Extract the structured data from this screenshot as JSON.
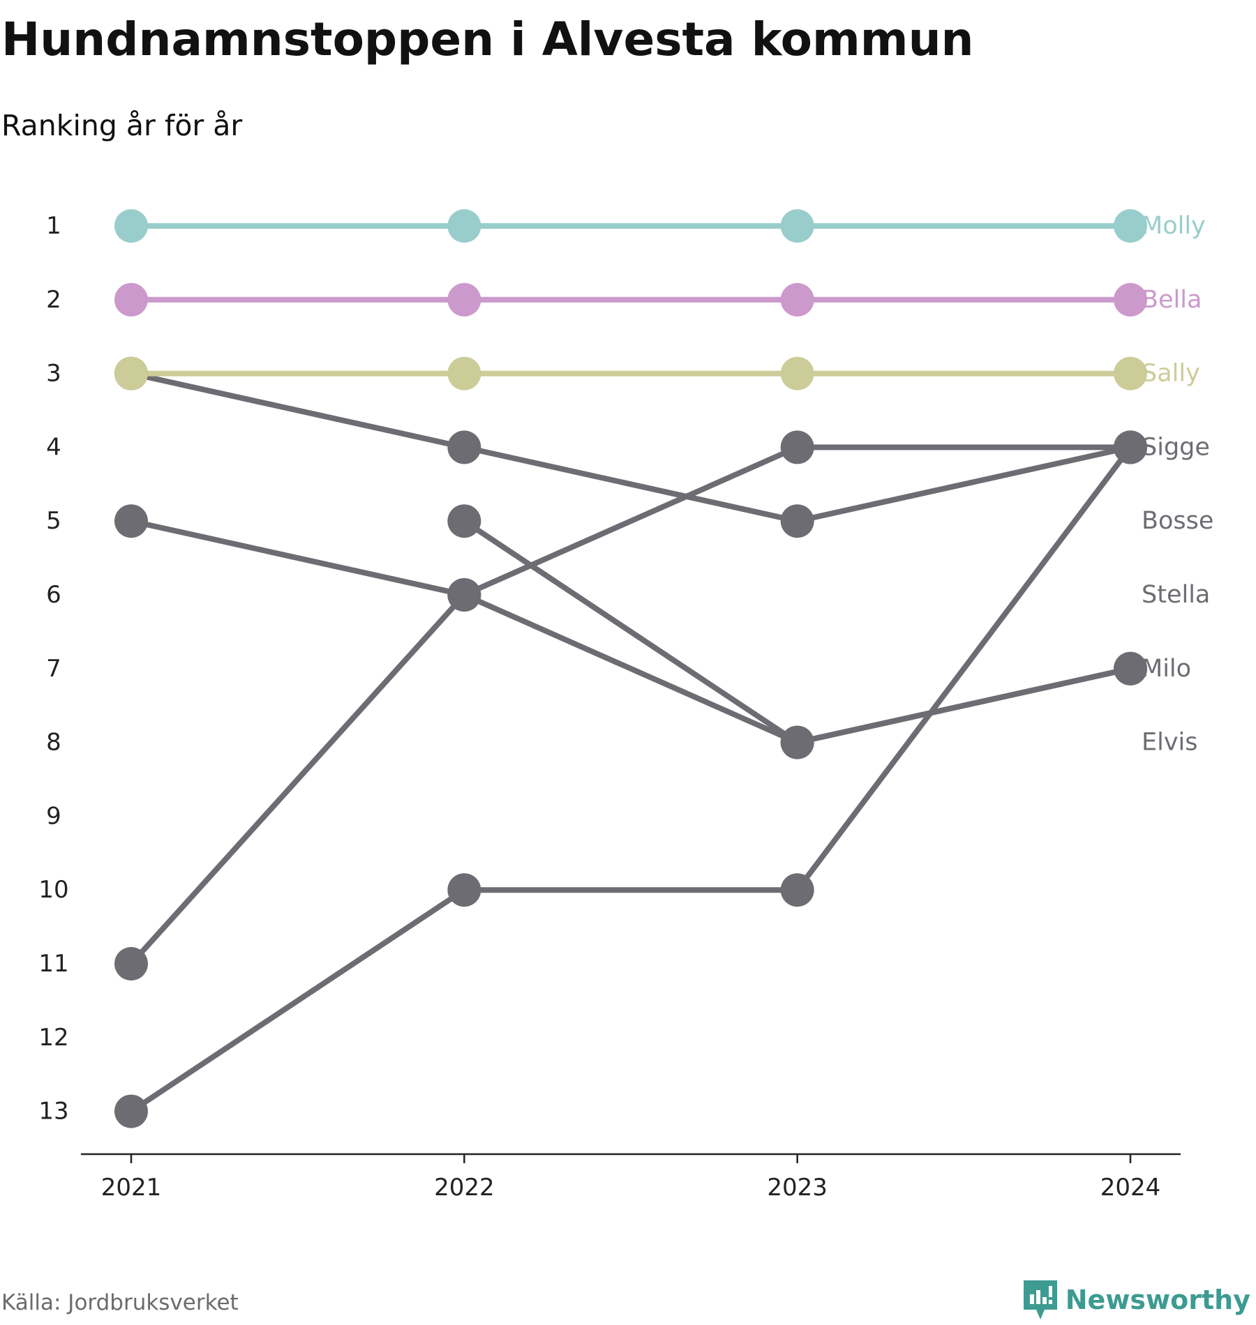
{
  "title": "Hundnamnstoppen i Alvesta kommun",
  "subtitle": "Ranking år för år",
  "source": "Källa: Jordbruksverket",
  "brand": {
    "name": "Newsworthy",
    "icon": "newsworthy-logo-icon",
    "color": "#3d9b91"
  },
  "chart_data": {
    "type": "line",
    "x": [
      "2021",
      "2022",
      "2023",
      "2024"
    ],
    "y_ticks": [
      1,
      2,
      3,
      4,
      5,
      6,
      7,
      8,
      9,
      10,
      11,
      12,
      13
    ],
    "ylim": [
      1,
      13
    ],
    "y_inverted": true,
    "grid": false,
    "legend": "direct labels at right end",
    "series": [
      {
        "name": "Molly",
        "values": [
          1,
          1,
          1,
          1
        ],
        "color": "#99cdcb",
        "highlight": true
      },
      {
        "name": "Bella",
        "values": [
          2,
          2,
          2,
          2
        ],
        "color": "#cc99cc",
        "highlight": true
      },
      {
        "name": "Sally",
        "values": [
          3,
          3,
          3,
          3
        ],
        "color": "#cccc99",
        "highlight": true
      },
      {
        "name": "Sigge",
        "values": [
          3,
          4,
          5,
          4
        ],
        "color": "#6d6c73",
        "highlight": false
      },
      {
        "name": "Bosse",
        "values": [
          11,
          6,
          4,
          4
        ],
        "color": "#6d6c73",
        "highlight": false
      },
      {
        "name": "Stella",
        "values": [
          13,
          10,
          10,
          4
        ],
        "color": "#6d6c73",
        "highlight": false
      },
      {
        "name": "Milo",
        "values": [
          5,
          6,
          8,
          7
        ],
        "color": "#6d6c73",
        "highlight": false
      },
      {
        "name": "Elvis",
        "values": [
          null,
          5,
          8,
          7
        ],
        "color": "#6d6c73",
        "highlight": false
      }
    ]
  }
}
